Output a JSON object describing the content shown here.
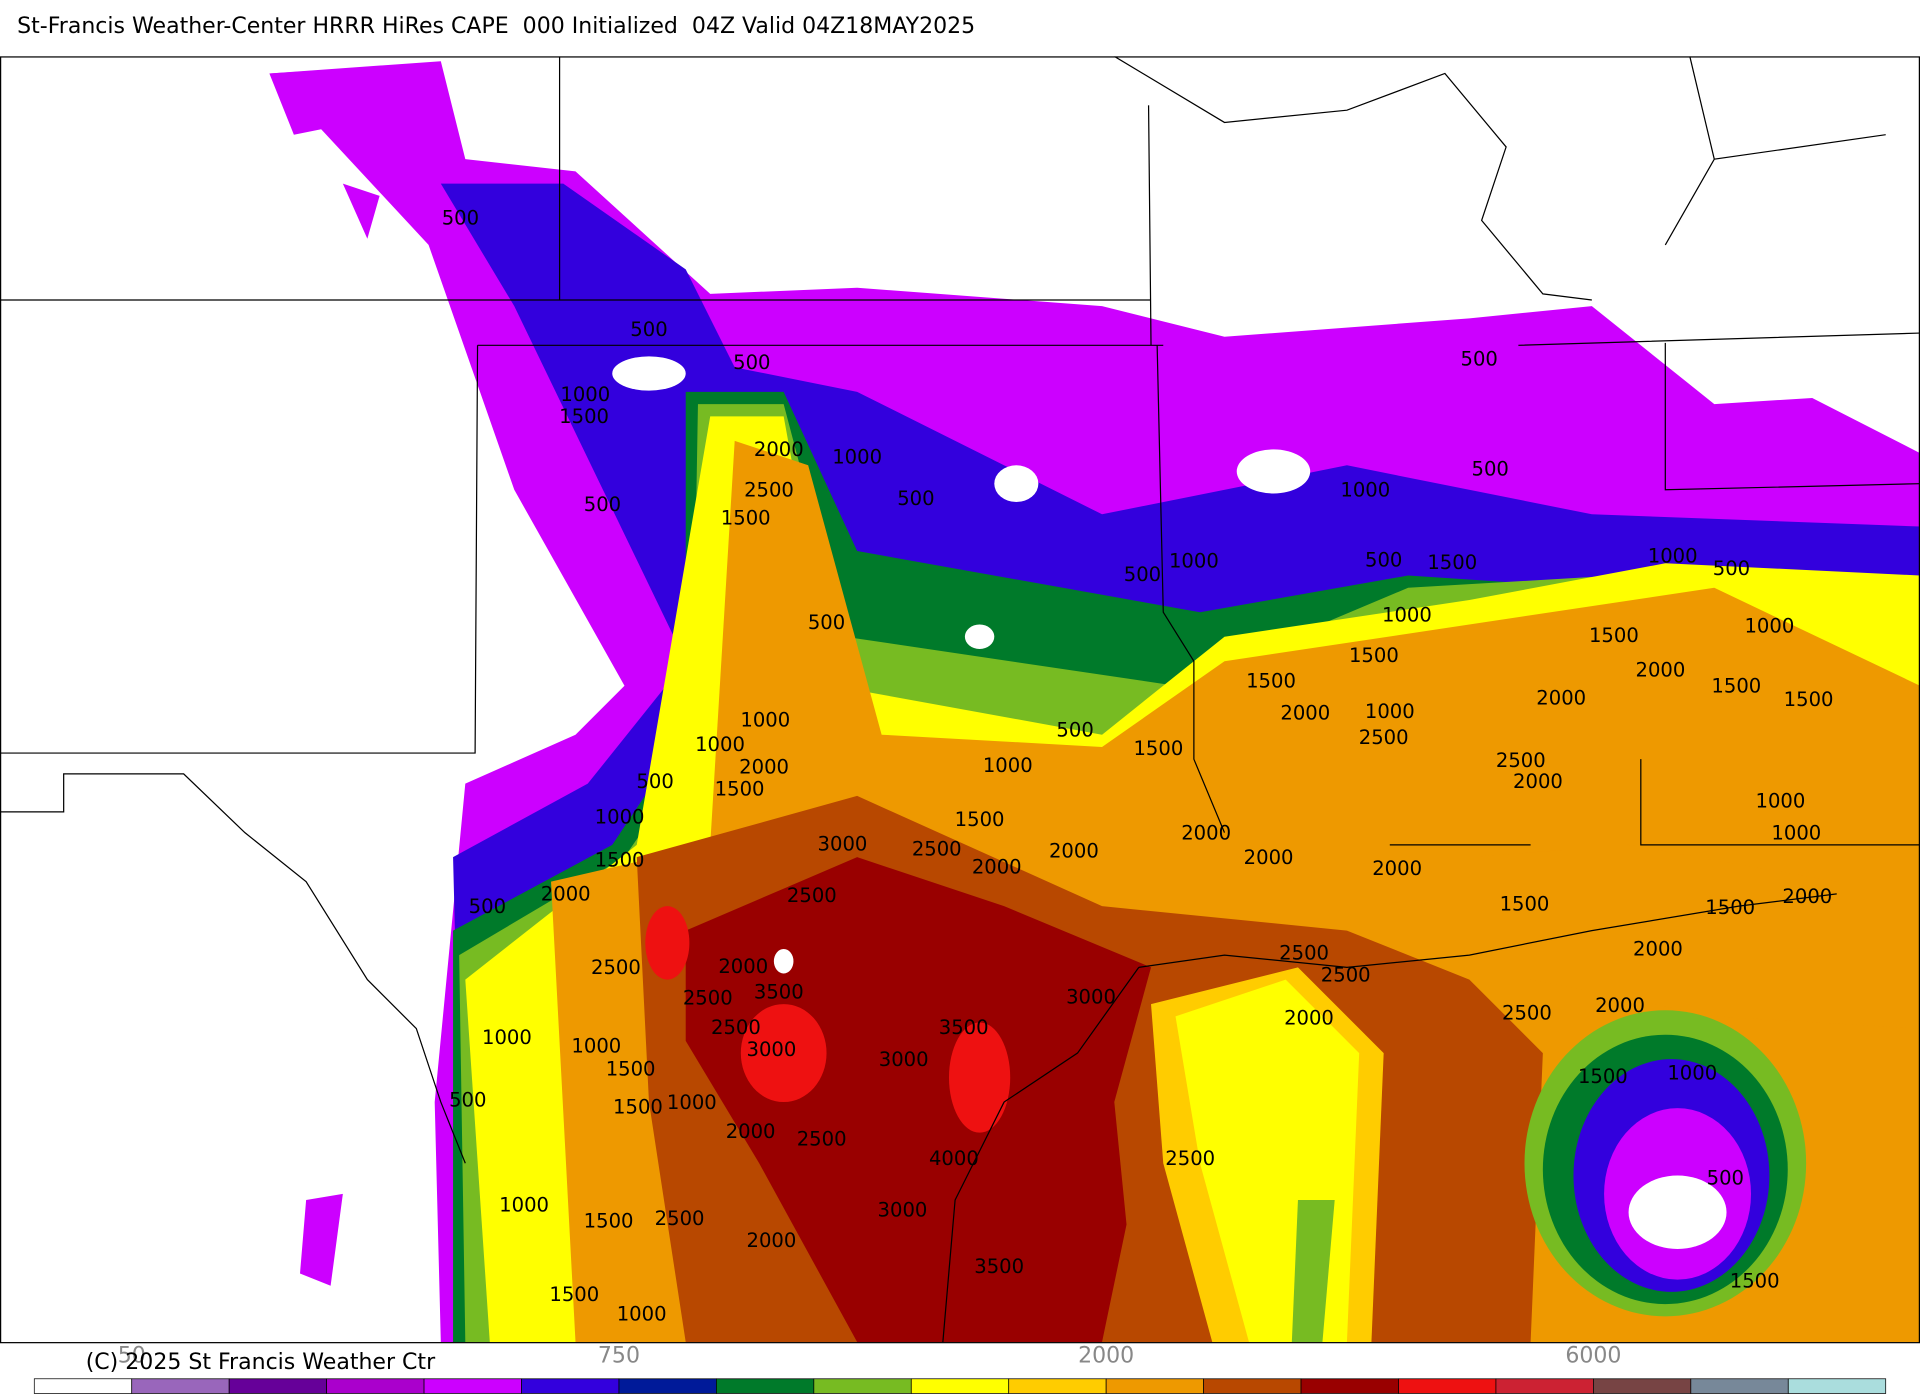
{
  "title": "St-Francis Weather-Center HRRR HiRes CAPE  000 Initialized  04Z Valid 04Z18MAY2025",
  "copyright": "(C) 2025 St Francis Weather Ctr",
  "contour_labels": [
    "500",
    "500",
    "500",
    "500",
    "1000",
    "1500",
    "2000",
    "1000",
    "500",
    "2500",
    "500",
    "500",
    "1500",
    "1000",
    "500",
    "1000",
    "500",
    "1500",
    "1000",
    "500",
    "500",
    "1000",
    "1000",
    "1500",
    "1500",
    "2000",
    "1500",
    "2000",
    "1000",
    "2000",
    "1500",
    "1500",
    "1000",
    "500",
    "2500",
    "1500",
    "1000",
    "2000",
    "2500",
    "2000",
    "500",
    "1500",
    "1000",
    "1000",
    "1000",
    "1500",
    "2000",
    "1000",
    "3000",
    "2500",
    "2000",
    "1500",
    "2000",
    "2000",
    "2000",
    "2000",
    "2500",
    "500",
    "1500",
    "1500",
    "2000",
    "2500",
    "2000",
    "2500",
    "2000",
    "2500",
    "3500",
    "2500",
    "3000",
    "2000",
    "2500",
    "2000",
    "2500",
    "3500",
    "1000",
    "1000",
    "3000",
    "3000",
    "1500",
    "1500",
    "1000",
    "500",
    "1500",
    "1000",
    "2000",
    "2500",
    "4000",
    "2500",
    "500",
    "1000",
    "3000",
    "1500",
    "2500",
    "2000",
    "3500",
    "1500",
    "1500",
    "1000"
  ],
  "colorbar": {
    "labels": [
      "50",
      "750",
      "2000",
      "6000"
    ],
    "colors": [
      "#ffffff",
      "#9966bb",
      "#660099",
      "#aa00cc",
      "#cc00ff",
      "#3300dd",
      "#001a99",
      "#007a2a",
      "#77bb22",
      "#ffff00",
      "#ffcc00",
      "#ee9900",
      "#b84800",
      "#990000",
      "#ee1111",
      "#cc2233",
      "#774444",
      "#778899",
      "#aadddd"
    ]
  }
}
